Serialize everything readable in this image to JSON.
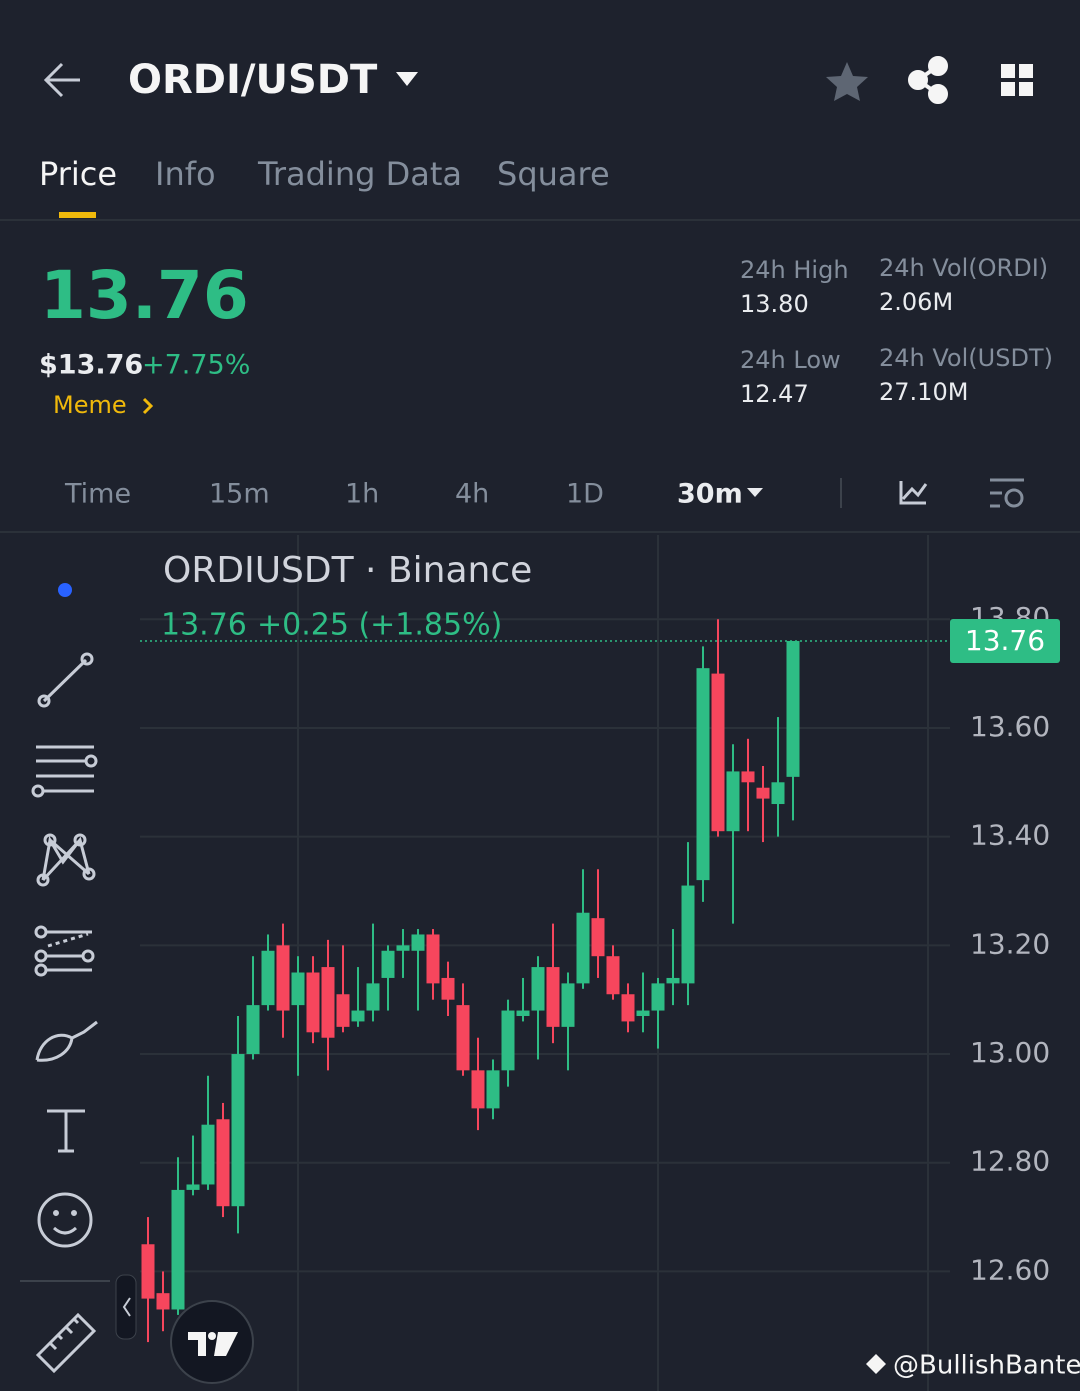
{
  "header": {
    "symbol": "ORDI/USDT"
  },
  "tabs": [
    "Price",
    "Info",
    "Trading Data",
    "Square"
  ],
  "price": {
    "last": "13.76",
    "usd": "$13.76",
    "change": "+7.75%",
    "tag": "Meme"
  },
  "stats": [
    {
      "label": "24h High",
      "value": "13.80"
    },
    {
      "label": "24h Vol(ORDI)",
      "value": "2.06M"
    },
    {
      "label": "24h Low",
      "value": "12.47"
    },
    {
      "label": "24h Vol(USDT)",
      "value": "27.10M"
    }
  ],
  "intervals": [
    "Time",
    "15m",
    "1h",
    "4h",
    "1D",
    "30m"
  ],
  "chart_data": {
    "type": "candlestick",
    "title": "ORDIUSDT · Binance",
    "legend_price": "13.76",
    "legend_change": "+0.25 (+1.85%)",
    "up_color": "#2ebd85",
    "down_color": "#f6465d",
    "ylim": [
      12.38,
      13.955
    ],
    "yticks": [
      {
        "value": 12.6,
        "label": "12.60"
      },
      {
        "value": 12.8,
        "label": "12.80"
      },
      {
        "value": 13.0,
        "label": "13.00"
      },
      {
        "value": 13.2,
        "label": "13.20"
      },
      {
        "value": 13.4,
        "label": "13.40"
      },
      {
        "value": 13.6,
        "label": "13.60"
      },
      {
        "value": 13.8,
        "label": "13.80"
      }
    ],
    "last_price": {
      "value": 13.76,
      "label": "13.76"
    },
    "open": [
      12.65,
      12.56,
      12.53,
      12.75,
      12.76,
      12.88,
      12.72,
      13.0,
      13.09,
      13.2,
      13.09,
      13.15,
      13.16,
      13.11,
      13.06,
      13.08,
      13.14,
      13.19,
      13.19,
      13.22,
      13.14,
      13.09,
      12.97,
      12.9,
      12.97,
      13.07,
      13.08,
      13.16,
      13.05,
      13.13,
      13.25,
      13.18,
      13.11,
      13.07,
      13.08,
      13.13,
      13.13,
      13.32,
      13.7,
      13.41,
      13.52,
      13.49,
      13.46,
      13.51
    ],
    "high": [
      12.7,
      12.6,
      12.81,
      12.85,
      12.96,
      12.91,
      13.07,
      13.18,
      13.22,
      13.24,
      13.18,
      13.18,
      13.21,
      13.2,
      13.16,
      13.24,
      13.2,
      13.23,
      13.23,
      13.23,
      13.17,
      13.13,
      13.03,
      12.99,
      13.1,
      13.14,
      13.18,
      13.24,
      13.15,
      13.34,
      13.34,
      13.2,
      13.13,
      13.15,
      13.14,
      13.23,
      13.39,
      13.75,
      13.8,
      13.57,
      13.58,
      13.53,
      13.62,
      13.76
    ],
    "low": [
      12.47,
      12.49,
      12.52,
      12.74,
      12.75,
      12.7,
      12.67,
      12.99,
      13.08,
      13.03,
      12.96,
      13.02,
      12.97,
      13.04,
      13.05,
      13.06,
      13.08,
      13.14,
      13.08,
      13.1,
      13.07,
      12.96,
      12.86,
      12.88,
      12.94,
      13.06,
      12.99,
      13.02,
      12.97,
      13.12,
      13.14,
      13.1,
      13.04,
      13.04,
      13.01,
      13.09,
      13.09,
      13.28,
      13.4,
      13.24,
      13.41,
      13.39,
      13.4,
      13.43
    ],
    "close": [
      12.55,
      12.53,
      12.75,
      12.76,
      12.87,
      12.72,
      13.0,
      13.09,
      13.19,
      13.08,
      13.15,
      13.04,
      13.03,
      13.05,
      13.08,
      13.13,
      13.19,
      13.2,
      13.22,
      13.13,
      13.1,
      12.97,
      12.9,
      12.97,
      13.08,
      13.08,
      13.16,
      13.05,
      13.13,
      13.26,
      13.18,
      13.11,
      13.06,
      13.08,
      13.13,
      13.14,
      13.31,
      13.71,
      13.41,
      13.52,
      13.5,
      13.47,
      13.5,
      13.76
    ]
  },
  "watermark": "@BullishBanter"
}
